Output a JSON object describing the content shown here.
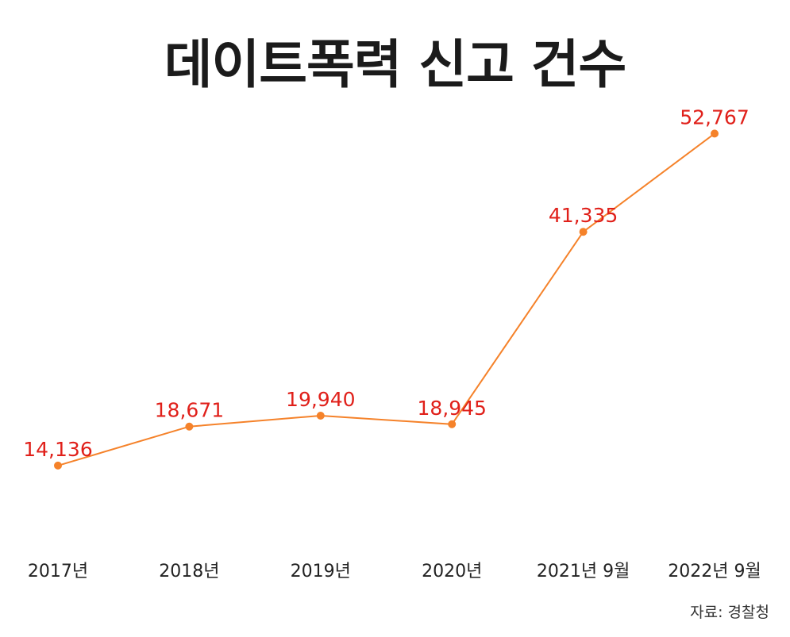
{
  "chart_data": {
    "type": "line",
    "title": "데이트폭력 신고 건수",
    "categories": [
      "2017년",
      "2018년",
      "2019년",
      "2020년",
      "2021년 9월",
      "2022년 9월"
    ],
    "values": [
      14136,
      18671,
      19940,
      18945,
      41335,
      52767
    ],
    "data_labels": [
      "14,136",
      "18,671",
      "19,940",
      "18,945",
      "41,335",
      "52,767"
    ],
    "ylim": [
      0,
      60000
    ],
    "grid": false,
    "line_color": "#f5822a",
    "label_color": "#e0201a"
  },
  "source": "자료: 경찰청"
}
